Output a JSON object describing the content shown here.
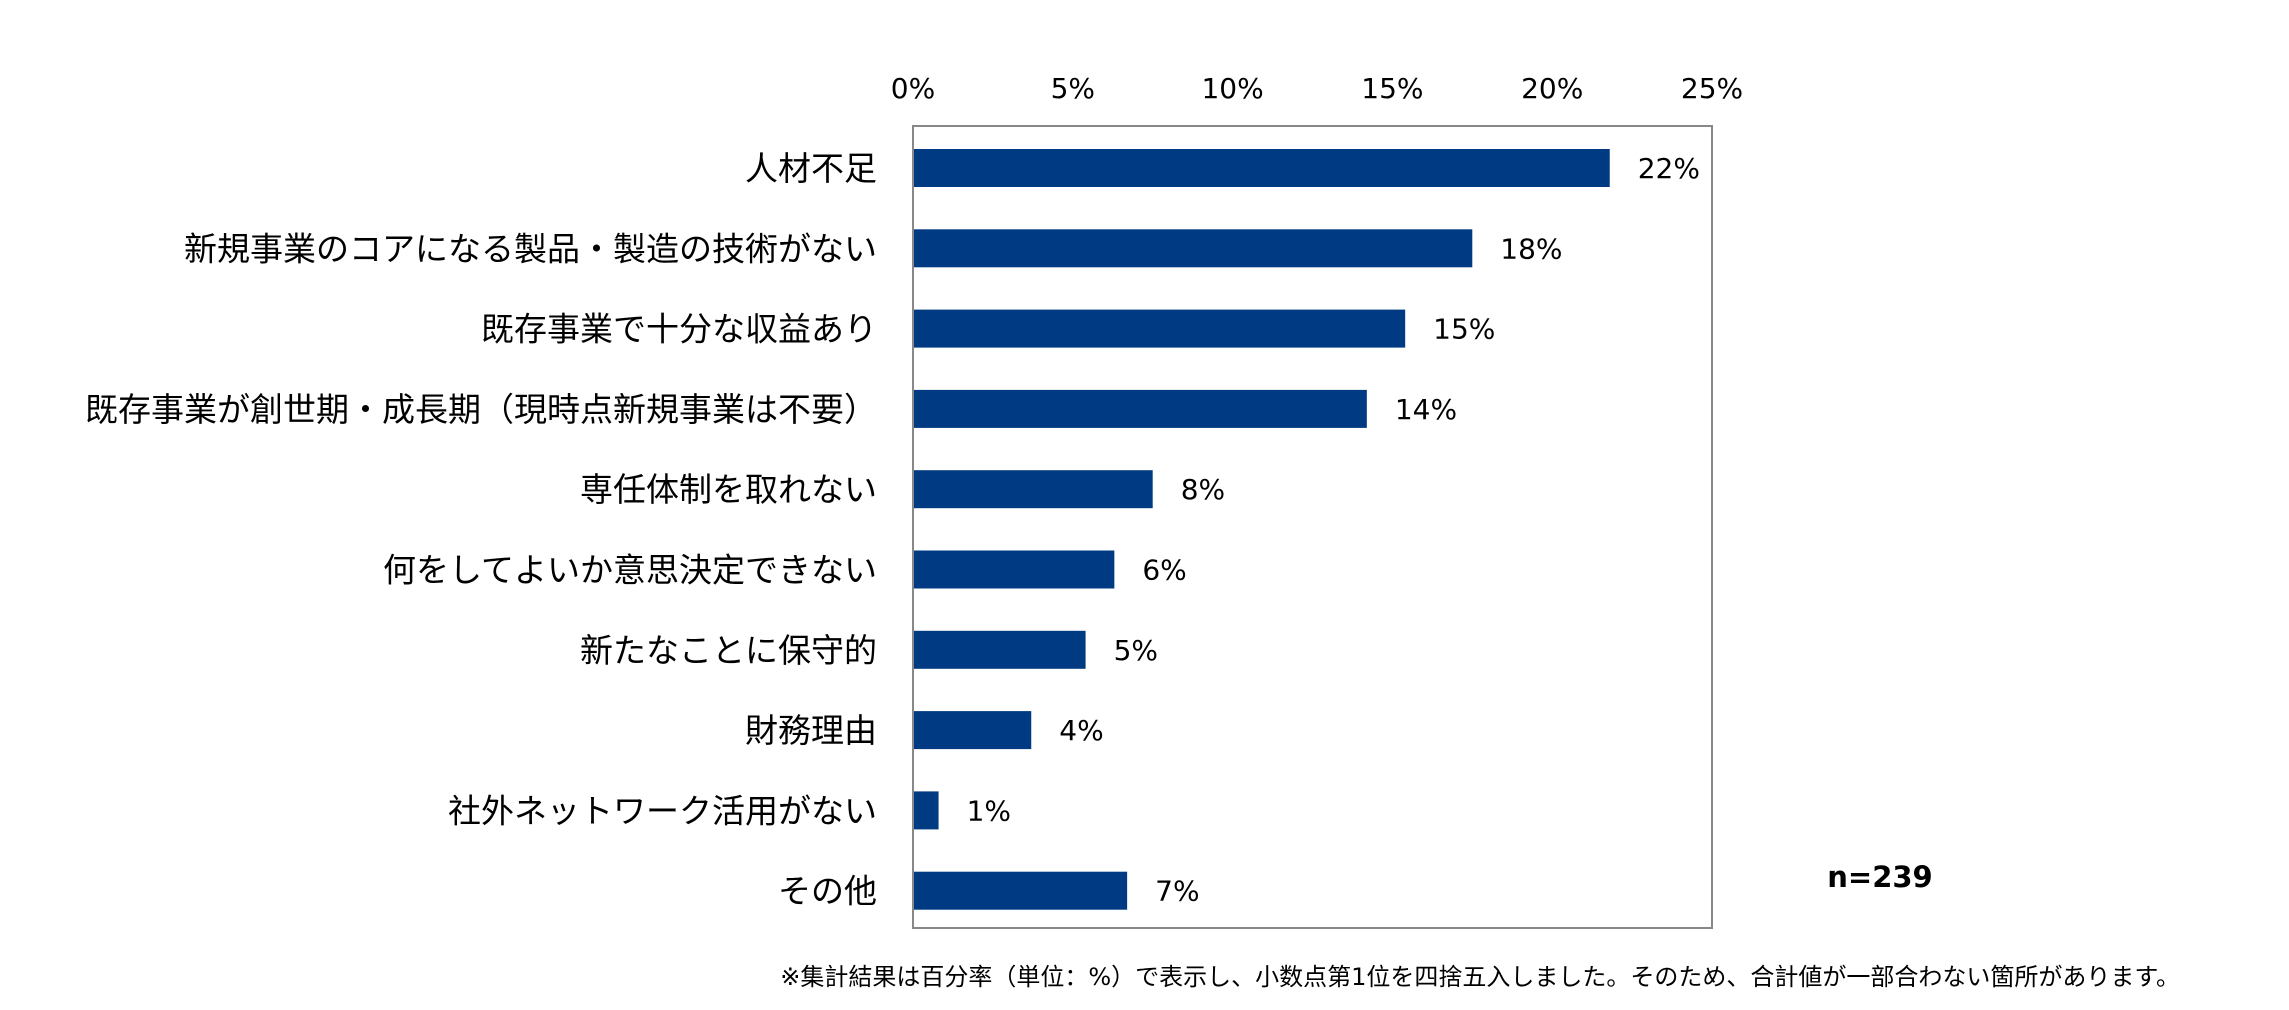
{
  "chart_data": {
    "type": "bar",
    "orientation": "horizontal",
    "categories": [
      "人材不足",
      "新規事業のコアになる製品・製造の技術がない",
      "既存事業で十分な収益あり",
      "既存事業が創世期・成長期（現時点新規事業は不要）",
      "専任体制を取れない",
      "何をしてよいか意思決定できない",
      "新たなことに保守的",
      "財務理由",
      "社外ネットワーク活用がない",
      "その他"
    ],
    "values": [
      21.8,
      17.5,
      15.4,
      14.2,
      7.5,
      6.3,
      5.4,
      3.7,
      0.8,
      6.7
    ],
    "data_labels": [
      "22%",
      "18%",
      "15%",
      "14%",
      "8%",
      "6%",
      "5%",
      "4%",
      "1%",
      "7%"
    ],
    "xlim": [
      0,
      25
    ],
    "xticks": [
      0,
      5,
      10,
      15,
      20,
      25
    ],
    "xtick_labels": [
      "0%",
      "5%",
      "10%",
      "15%",
      "20%",
      "25%"
    ],
    "xaxis_position": "top",
    "grid": false,
    "legend": "none",
    "bar_color": "#003A82",
    "frame_color": "#888888",
    "annotation": "n=239",
    "footnote": "※集計結果は百分率（単位：%）で表示し、小数点第1位を四捨五入しました。そのため、合計値が一部合わない箇所があります。"
  }
}
